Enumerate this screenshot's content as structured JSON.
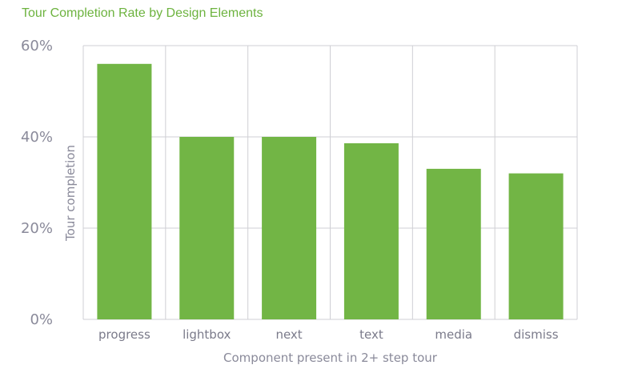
{
  "chart_data": {
    "type": "bar",
    "title": "Tour Completion Rate by Design Elements",
    "xlabel": "Component present in 2+ step tour",
    "ylabel": "Tour completion",
    "categories": [
      "progress",
      "lightbox",
      "next",
      "text",
      "media",
      "dismiss"
    ],
    "values": [
      56,
      40,
      40,
      38.6,
      33,
      32
    ],
    "ylim": [
      0,
      60
    ],
    "yticks": [
      "0%",
      "20%",
      "40%",
      "60%"
    ],
    "ytick_values": [
      0,
      20,
      40,
      60
    ],
    "grid": true,
    "bar_color": "#72b545",
    "title_color": "#6db33f"
  }
}
